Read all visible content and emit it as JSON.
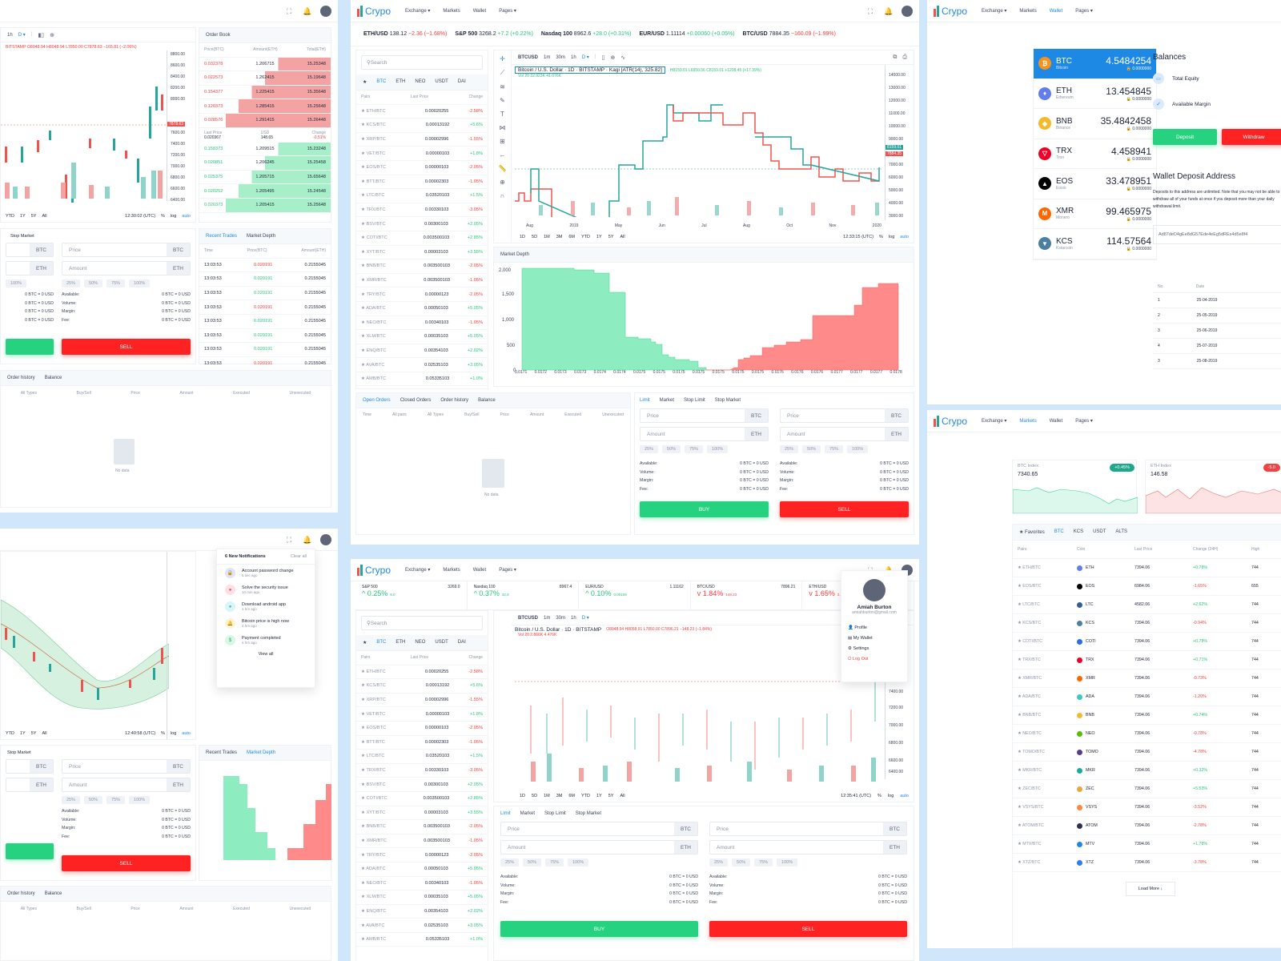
{
  "nav": {
    "brand": "Crypo",
    "items": [
      "Exchange ▾",
      "Markets",
      "Wallet",
      "Pages ▾"
    ]
  },
  "ticker": [
    {
      "pair": "ETH/USD",
      "price": "138.12",
      "change": "−2.36 (−1.68%)",
      "dir": "down"
    },
    {
      "pair": "S&P 500",
      "price": "3268.2",
      "change": "+7.2 (+0.22%)",
      "dir": "up"
    },
    {
      "pair": "Nasdaq 100",
      "price": "8962.6",
      "change": "+28.0 (+0.31%)",
      "dir": "up"
    },
    {
      "pair": "EUR/USD",
      "price": "1.11114",
      "change": "+0.00060 (+0.05%)",
      "dir": "up"
    },
    {
      "pair": "BTC/USD",
      "price": "7884.35",
      "change": "−160.09 (−1.99%)",
      "dir": "down"
    }
  ],
  "market_list": {
    "search_placeholder": "Search",
    "tabs": [
      "★",
      "BTC",
      "ETH",
      "NEO",
      "USDT",
      "DAI"
    ],
    "headers": [
      "Pairs",
      "Last Price",
      "Change"
    ],
    "rows": [
      {
        "pair": "★ ETH/BTC",
        "price": "0.00020255",
        "change": "-2.58%",
        "dir": "down"
      },
      {
        "pair": "★ KCS/BTC",
        "price": "0.00013192",
        "change": "+5.6%",
        "dir": "up"
      },
      {
        "pair": "★ XRP/BTC",
        "price": "0.00002996",
        "change": "-1.55%",
        "dir": "down"
      },
      {
        "pair": "★ VET/BTC",
        "price": "0.00000103",
        "change": "+1.8%",
        "dir": "up"
      },
      {
        "pair": "★ EOS/BTC",
        "price": "0.00000103",
        "change": "-2.05%",
        "dir": "down"
      },
      {
        "pair": "★ BTT/BTC",
        "price": "0.00002303",
        "change": "-1.05%",
        "dir": "down"
      },
      {
        "pair": "★ LTC/BTC",
        "price": "0.03520103",
        "change": "+1.5%",
        "dir": "up"
      },
      {
        "pair": "★ TRX/BTC",
        "price": "0.00330103",
        "change": "-3.05%",
        "dir": "down"
      },
      {
        "pair": "★ BSV/BTC",
        "price": "0.00300103",
        "change": "+2.05%",
        "dir": "up"
      },
      {
        "pair": "★ COTI/BTC",
        "price": "0.003500103",
        "change": "+2.85%",
        "dir": "up"
      },
      {
        "pair": "★ XYT/BTC",
        "price": "0.00003103",
        "change": "+3.55%",
        "dir": "up"
      },
      {
        "pair": "★ BNB/BTC",
        "price": "0.003500103",
        "change": "-2.05%",
        "dir": "down"
      },
      {
        "pair": "★ XMR/BTC",
        "price": "0.003500103",
        "change": "-1.05%",
        "dir": "down"
      },
      {
        "pair": "★ TRY/BTC",
        "price": "0.00000123",
        "change": "-2.05%",
        "dir": "down"
      },
      {
        "pair": "★ ADA/BTC",
        "price": "0.00050103",
        "change": "+5.05%",
        "dir": "up"
      },
      {
        "pair": "★ NEO/BTC",
        "price": "0.00340103",
        "change": "-1.05%",
        "dir": "down"
      },
      {
        "pair": "★ XLM/BTC",
        "price": "0.00035103",
        "change": "+5.05%",
        "dir": "up"
      },
      {
        "pair": "★ ENQ/BTC",
        "price": "0.00354103",
        "change": "+2.02%",
        "dir": "up"
      },
      {
        "pair": "★ AVA/BTC",
        "price": "0.02535103",
        "change": "+3.05%",
        "dir": "up"
      },
      {
        "pair": "★ AMB/BTC",
        "price": "0.05335103",
        "change": "+1.0%",
        "dir": "up"
      }
    ]
  },
  "chart_main": {
    "symbol": "BTCUSD",
    "intervals": [
      "1m",
      "30m",
      "1h",
      "D ▾"
    ],
    "legend": "Bitcoin / U.S. Dollar · 1D · BITSTAMP · Kagi [ATR(14), 325.82]",
    "ohlc": "H8159.01 L6950.56 C8159.01 +1208.45 (+17.39%)",
    "vol": "Vol 20  32.923K  41.076K",
    "y_ticks": [
      "14000.00",
      "13000.00",
      "12000.00",
      "11000.00",
      "10000.00",
      "9000.00",
      "8000.00",
      "7000.00",
      "6000.00",
      "5000.00",
      "4000.00",
      "3000.00"
    ],
    "last_price_tag": "8159.01",
    "prev_price_tag": "7884.35",
    "x_ticks": [
      "Aug",
      "2019",
      "May",
      "Jun",
      "Jul",
      "Aug",
      "Oct",
      "Nov",
      "2020"
    ],
    "ranges": [
      "1D",
      "5D",
      "1M",
      "3M",
      "6M",
      "YTD",
      "1Y",
      "5Y",
      "All"
    ],
    "time": "12:33:15 (UTC)",
    "opts": [
      "%",
      "log",
      "auto"
    ]
  },
  "depth": {
    "title": "Market Depth",
    "y_ticks": [
      "2,000",
      "1,500",
      "1,000",
      "500",
      "0"
    ],
    "x_ticks": [
      "0.0171",
      "0.0172",
      "0.0173",
      "0.0173",
      "0.0174",
      "0.0174",
      "0.0175",
      "0.0175",
      "0.0175",
      "0.0175",
      "0.0175",
      "0.0175",
      "0.0175",
      "0.0176",
      "0.0176",
      "0.0176",
      "0.0177",
      "0.0177",
      "0.0177",
      "0.0178"
    ]
  },
  "orders": {
    "tabs": [
      "Open Orders",
      "Closed Orders",
      "Order history",
      "Balance"
    ],
    "headers": [
      "Time",
      "All pairs",
      "All Types",
      "Buy/Sell",
      "Price",
      "Amount",
      "Executed",
      "Unexecuted"
    ],
    "empty": "No data"
  },
  "trade_form": {
    "tabs": [
      "Limit",
      "Market",
      "Stop Limit",
      "Stop Market"
    ],
    "price_placeholder": "Price",
    "amount_placeholder": "Amount",
    "price_unit": "BTC",
    "amount_unit": "ETH",
    "pcts": [
      "25%",
      "50%",
      "75%",
      "100%"
    ],
    "labels": [
      "Available:",
      "Volume:",
      "Margin:",
      "Fee:"
    ],
    "value": "0 BTC = 0 USD",
    "buy": "BUY",
    "sell": "SELL"
  },
  "left_top": {
    "ohlc": "BITSTAMP  O8048.94 H8048.94 L7850.00 C7878.63 −165.81 (−2.06%)",
    "y_ticks": [
      "8800.00",
      "8600.00",
      "8400.00",
      "8200.00",
      "8000.00",
      "7800.00",
      "7600.00",
      "7400.00",
      "7200.00",
      "7000.00",
      "6800.00",
      "6600.00",
      "6400.00"
    ],
    "price_tag": "7878.63",
    "x_ticks": [
      "9",
      "16",
      "23",
      "2020"
    ],
    "ranges": [
      "YTD",
      "1Y",
      "5Y",
      "All"
    ],
    "time": "12:30:02 (UTC)",
    "order_book": {
      "title": "Order Book",
      "headers": [
        "Price(BTC)",
        "Amount(ETH)",
        "Total(ETH)"
      ],
      "asks": [
        [
          "0.032378",
          "1.206715",
          "15.25348"
        ],
        [
          "0.022573",
          "1.262415",
          "15.19648"
        ],
        [
          "0.154377",
          "1.225415",
          "15.35648"
        ],
        [
          "0.120373",
          "1.285415",
          "15.25648"
        ],
        [
          "0.028576",
          "1.291415",
          "15.26448"
        ]
      ],
      "last_label": "Last Price",
      "last": "0.020367",
      "usd_label": "USD",
      "usd": "148.65",
      "change_label": "Change",
      "change": "-0.51%",
      "bids": [
        [
          "0.158373",
          "1.209515",
          "15.23248"
        ],
        [
          "0.020851",
          "1.206245",
          "15.25458"
        ],
        [
          "0.025375",
          "1.205715",
          "15.65648"
        ],
        [
          "0.020252",
          "1.205495",
          "15.24548"
        ],
        [
          "0.020373",
          "1.205415",
          "15.25648"
        ]
      ]
    },
    "trades": {
      "tabs": [
        "Recent Trades",
        "Market Depth"
      ],
      "headers": [
        "Time",
        "Price(BTC)",
        "Amount(ETH)"
      ],
      "rows": [
        [
          "13:03:53",
          "0.020191",
          "0.2155045",
          "down"
        ],
        [
          "13:03:53",
          "0.020191",
          "0.2155045",
          "up"
        ],
        [
          "13:03:53",
          "0.020191",
          "0.2155045",
          "up"
        ],
        [
          "13:03:53",
          "0.020191",
          "0.2155045",
          "down"
        ],
        [
          "13:03:53",
          "0.020191",
          "0.2155045",
          "up"
        ],
        [
          "13:03:53",
          "0.020191",
          "0.2155045",
          "up"
        ],
        [
          "13:03:53",
          "0.020191",
          "0.2155045",
          "up"
        ],
        [
          "13:03:53",
          "0.020191",
          "0.2155045",
          "down"
        ]
      ]
    },
    "stop_market": "Stop Market",
    "bottom_tabs": [
      "Order history",
      "Balance"
    ],
    "bottom_headers": [
      "All Types",
      "Buy/Sell",
      "Price",
      "Amount",
      "Executed",
      "Unexecuted"
    ]
  },
  "wallet": {
    "coins": [
      {
        "sym": "BTC",
        "name": "Bitcoin",
        "val": "4.5484254",
        "locked": "🔒 0.0000000",
        "color": "#f7931a",
        "glyph": "₿"
      },
      {
        "sym": "ETH",
        "name": "Ethereum",
        "val": "13.454845",
        "locked": "🔒 0.0000000",
        "color": "#627eea",
        "glyph": "♦"
      },
      {
        "sym": "BNB",
        "name": "Binance",
        "val": "35.4842458",
        "locked": "🔒 0.0000000",
        "color": "#f3ba2f",
        "glyph": "◆"
      },
      {
        "sym": "TRX",
        "name": "Tron",
        "val": "4.458941",
        "locked": "🔒 0.0000000",
        "color": "#ef0027",
        "glyph": "▽"
      },
      {
        "sym": "EOS",
        "name": "Eosio",
        "val": "33.478951",
        "locked": "🔒 0.0000000",
        "color": "#000000",
        "glyph": "▲"
      },
      {
        "sym": "XMR",
        "name": "Monero",
        "val": "99.465975",
        "locked": "🔒 0.0000000",
        "color": "#ff6600",
        "glyph": "M"
      },
      {
        "sym": "KCS",
        "name": "Kstarcoin",
        "val": "114.57564",
        "locked": "🔒 0.0000000",
        "color": "#4b7fa1",
        "glyph": "▼"
      }
    ],
    "balances_title": "Balances",
    "total_equity": "Total Equity",
    "available_margin": "Available Margin",
    "deposit": "Deposit",
    "withdraw": "Withdraw",
    "deposit_title": "Wallet Deposit Address",
    "deposit_desc": "Deposits to this address are unlimited. Note that you may not be able to withdraw all of your funds at once if you deposit more than your daily withdrawal limit.",
    "address": "Ad87deD4gEe8dG57Ede4eEg5dREs4d5e8f4",
    "history_headers": [
      "No.",
      "Date"
    ],
    "history": [
      [
        "1",
        "25-04-2019"
      ],
      [
        "2",
        "25-05-2019"
      ],
      [
        "3",
        "25-06-2019"
      ],
      [
        "4",
        "25-07-2019"
      ],
      [
        "3",
        "25-08-2019"
      ]
    ]
  },
  "markets": {
    "btc_index_label": "BTC Index",
    "btc_index": "7340.65",
    "btc_change": "+0.45%",
    "eth_index_label": "ETH Index",
    "eth_index": "146.58",
    "eth_change": "-5.0",
    "tabs": [
      "★ Favorites",
      "BTC",
      "KCS",
      "USDT",
      "ALTS"
    ],
    "headers": [
      "Pairs",
      "Coin",
      "Last Price",
      "Change (24H)",
      "High"
    ],
    "rows": [
      {
        "pair": "★ ETH/BTC",
        "coin": "ETH",
        "price": "7394.06",
        "change": "+0.78%",
        "dir": "up",
        "high": "744",
        "color": "#627eea"
      },
      {
        "pair": "★ EOS/BTC",
        "coin": "EOS",
        "price": "6984.06",
        "change": "-1.65%",
        "dir": "down",
        "high": "655",
        "color": "#000000"
      },
      {
        "pair": "★ LTC/BTC",
        "coin": "LTC",
        "price": "4582.06",
        "change": "+2.62%",
        "dir": "up",
        "high": "744",
        "color": "#345d9d"
      },
      {
        "pair": "★ KCS/BTC",
        "coin": "KCS",
        "price": "7394.06",
        "change": "-0.94%",
        "dir": "down",
        "high": "744",
        "color": "#4b7fa1"
      },
      {
        "pair": "★ COTI/BTC",
        "coin": "COTI",
        "price": "7394.06",
        "change": "+0.78%",
        "dir": "up",
        "high": "744",
        "color": "#2d6de0"
      },
      {
        "pair": "★ TRX/BTC",
        "coin": "TRX",
        "price": "7394.06",
        "change": "+0.71%",
        "dir": "up",
        "high": "744",
        "color": "#ef0027"
      },
      {
        "pair": "★ XMR/BTC",
        "coin": "XMR",
        "price": "7394.06",
        "change": "-0.73%",
        "dir": "down",
        "high": "744",
        "color": "#ff6600"
      },
      {
        "pair": "★ ADA/BTC",
        "coin": "ADA",
        "price": "7394.06",
        "change": "-1.20%",
        "dir": "down",
        "high": "744",
        "color": "#3cc8c8"
      },
      {
        "pair": "★ BNB/BTC",
        "coin": "BNB",
        "price": "7394.06",
        "change": "+0.74%",
        "dir": "up",
        "high": "744",
        "color": "#f3ba2f"
      },
      {
        "pair": "★ NEO/BTC",
        "coin": "NEO",
        "price": "7394.06",
        "change": "-0.78%",
        "dir": "down",
        "high": "744",
        "color": "#58bf00"
      },
      {
        "pair": "★ TOMO/BTC",
        "coin": "TOMO",
        "price": "7394.06",
        "change": "-4.78%",
        "dir": "down",
        "high": "744",
        "color": "#5a3a8c"
      },
      {
        "pair": "★ MKR/BTC",
        "coin": "MKR",
        "price": "7394.06",
        "change": "+0.32%",
        "dir": "up",
        "high": "744",
        "color": "#1aab9b"
      },
      {
        "pair": "★ ZEC/BTC",
        "coin": "ZEC",
        "price": "7394.06",
        "change": "+5.53%",
        "dir": "up",
        "high": "744",
        "color": "#e5a93d"
      },
      {
        "pair": "★ VSYS/BTC",
        "coin": "VSYS",
        "price": "7394.06",
        "change": "-3.52%",
        "dir": "down",
        "high": "744",
        "color": "#ff8737"
      },
      {
        "pair": "★ ATOM/BTC",
        "coin": "ATOM",
        "price": "7394.06",
        "change": "-2.78%",
        "dir": "down",
        "high": "744",
        "color": "#2e3148"
      },
      {
        "pair": "★ MTV/BTC",
        "coin": "MTV",
        "price": "7394.06",
        "change": "+1.78%",
        "dir": "up",
        "high": "744",
        "color": "#1e88e5"
      },
      {
        "pair": "★ XTZ/BTC",
        "coin": "XTZ",
        "price": "7394.06",
        "change": "-3.78%",
        "dir": "down",
        "high": "744",
        "color": "#2c7df7"
      }
    ],
    "load_more": "Load More ↓"
  },
  "bottom_mid": {
    "indices": [
      {
        "name": "S&P 500",
        "val": "3269.0",
        "pct": "0.25%",
        "sub": "8.0",
        "dir": "up"
      },
      {
        "name": "Nasdaq 100",
        "val": "8967.4",
        "pct": "0.37%",
        "sub": "32.8",
        "dir": "up"
      },
      {
        "name": "EUR/USD",
        "val": "1.11162",
        "pct": "0.10%",
        "sub": "0.00109",
        "dir": "up"
      },
      {
        "name": "BTC/USD",
        "val": "7896.21",
        "pct": "1.84%",
        "sub": "148.23",
        "dir": "down"
      },
      {
        "name": "ETH/USD",
        "val": "",
        "pct": "1.65%",
        "sub": "2.3",
        "dir": "down"
      }
    ],
    "legend": "Bitcoin / U.S. Dollar · 1D · BITSTAMP",
    "ohlc": "O8048.94 H8058.91 L7850.00 C7896.21 −148.23 (−1.84%)",
    "vol": "Vol 20  2.866K  4.476K",
    "y_ticks": [
      "7400.00",
      "7200.00",
      "7000.00",
      "6800.00",
      "6600.00",
      "6400.00"
    ],
    "x_ticks": [
      "25",
      "Dec",
      "3",
      "9",
      "16",
      "23",
      "27",
      "2020"
    ],
    "time": "12:35:41 (UTC)",
    "profile": {
      "name": "Amiah Burton",
      "email": "amiahburton@gmail.com",
      "items": [
        "Profile",
        "My Wallet",
        "Settings",
        "Log Out"
      ]
    }
  },
  "notifications": {
    "title": "6 New Notifications",
    "clear": "Clear all",
    "items": [
      {
        "title": "Account password change",
        "time": "5 sec ago",
        "color": "#e0e3ff",
        "fg": "#5a67f2",
        "glyph": "🔒"
      },
      {
        "title": "Solve the security issue",
        "time": "10 min ago",
        "color": "#ffe0e6",
        "fg": "#f0466a",
        "glyph": "●"
      },
      {
        "title": "Download android app",
        "time": "1 hrs ago",
        "color": "#d9f5f5",
        "fg": "#27c2c2",
        "glyph": "●"
      },
      {
        "title": "Bitcoin price is high now",
        "time": "2 hrs ago",
        "color": "#fff3d6",
        "fg": "#f5b400",
        "glyph": "🔔"
      },
      {
        "title": "Payment completed",
        "time": "4 hrs ago",
        "color": "#d9f7e6",
        "fg": "#1fb35c",
        "glyph": "$"
      }
    ],
    "view_all": "View all"
  }
}
